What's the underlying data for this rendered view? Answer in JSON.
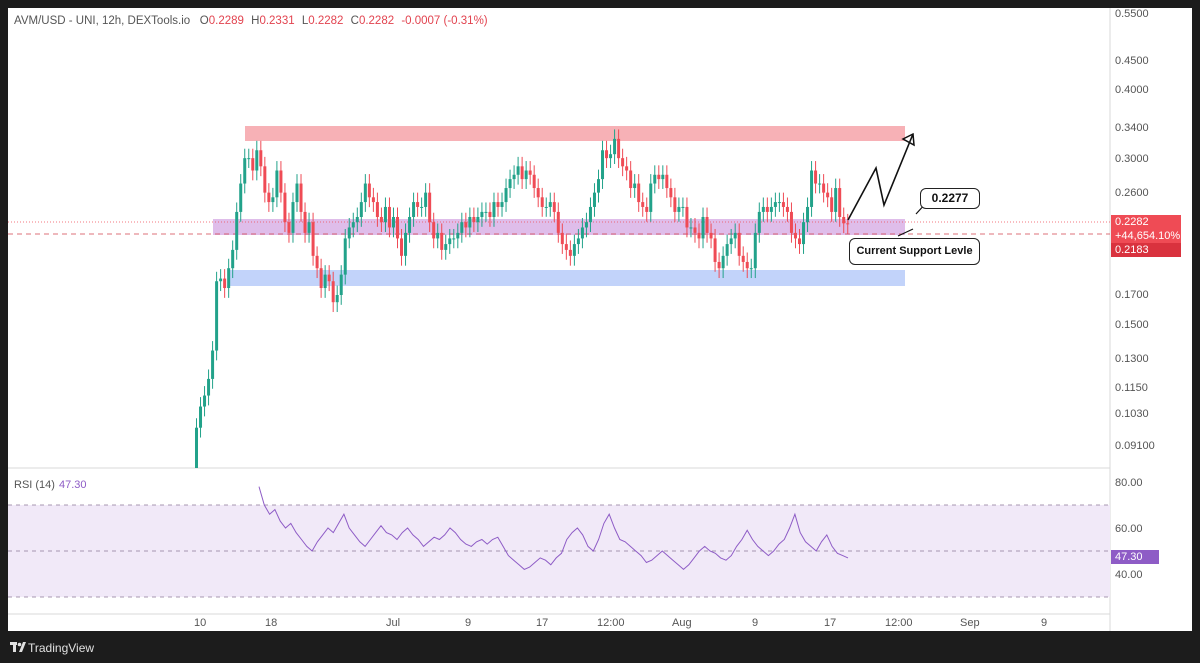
{
  "header": {
    "symbol": "AVM/USD - UNI, 12h, DEXTools.io",
    "open_label": "O",
    "open": "0.2289",
    "high_label": "H",
    "high": "0.2331",
    "low_label": "L",
    "low": "0.2282",
    "close_label": "C",
    "close": "0.2282",
    "change": "-0.0007 (-0.31%)"
  },
  "price_scale": [
    "0.5500",
    "0.4500",
    "0.4000",
    "0.3400",
    "0.3000",
    "0.2600",
    "0.1700",
    "0.1500",
    "0.1300",
    "0.1150",
    "0.1030",
    "0.09100"
  ],
  "price_tags": {
    "last": "0.2282",
    "percent": "+44,654.10%",
    "support": "0.2183"
  },
  "rsi": {
    "label": "RSI (14)",
    "value": "47.30",
    "scale": [
      "80.00",
      "60.00",
      "40.00"
    ]
  },
  "time_axis": [
    "10",
    "18",
    "Jul",
    "9",
    "17",
    "12:00",
    "Aug",
    "9",
    "17",
    "12:00",
    "Sep",
    "9"
  ],
  "annotations": {
    "target_label": "0.2277",
    "support_label": "Current Support Levle"
  },
  "footer": {
    "brand": "TradingView"
  },
  "colors": {
    "up": "#22a28a",
    "down": "#ef4b55",
    "rsi": "#8e5cc6",
    "resistance_zone": "#f7b1b6",
    "support_zone": "#d8b3e6",
    "lower_zone": "#c2d3fa"
  },
  "chart_data": {
    "type": "candlestick",
    "series": [
      {
        "name": "AVM/USD",
        "o": [
          0.08,
          0.098,
          0.107,
          0.112,
          0.12,
          0.135,
          0.18,
          0.182,
          0.175,
          0.19,
          0.205,
          0.24,
          0.27,
          0.3,
          0.3,
          0.285,
          0.31,
          0.29,
          0.26,
          0.25,
          0.255,
          0.285,
          0.26,
          0.23,
          0.22,
          0.25,
          0.27,
          0.24,
          0.22,
          0.23,
          0.2,
          0.19,
          0.175,
          0.185,
          0.18,
          0.165,
          0.17,
          0.185,
          0.215,
          0.225,
          0.23,
          0.235,
          0.25,
          0.27,
          0.255,
          0.25,
          0.235,
          0.23,
          0.245,
          0.225,
          0.235,
          0.215,
          0.2,
          0.22,
          0.235,
          0.25,
          0.245,
          0.245,
          0.26,
          0.23,
          0.215,
          0.22,
          0.205,
          0.21,
          0.215,
          0.215,
          0.22,
          0.23,
          0.225,
          0.235,
          0.23,
          0.235,
          0.24,
          0.24,
          0.235,
          0.25,
          0.245,
          0.25,
          0.265,
          0.275,
          0.28,
          0.29,
          0.275,
          0.285,
          0.28,
          0.265,
          0.255,
          0.245,
          0.245,
          0.25,
          0.24,
          0.22,
          0.21,
          0.205,
          0.2,
          0.21,
          0.215,
          0.225,
          0.23,
          0.245,
          0.26,
          0.275,
          0.31,
          0.3,
          0.305,
          0.325,
          0.3,
          0.29,
          0.285,
          0.265,
          0.27,
          0.25,
          0.245,
          0.24,
          0.27,
          0.28,
          0.275,
          0.28,
          0.265,
          0.255,
          0.24,
          0.245,
          0.245,
          0.225,
          0.225,
          0.22,
          0.215,
          0.235,
          0.22,
          0.215,
          0.195,
          0.19,
          0.2,
          0.21,
          0.215,
          0.22,
          0.2,
          0.195,
          0.19,
          0.19,
          0.22,
          0.24,
          0.245,
          0.24,
          0.245,
          0.25,
          0.25,
          0.245,
          0.24,
          0.22,
          0.215,
          0.21,
          0.23,
          0.245,
          0.285,
          0.27,
          0.27,
          0.26,
          0.255,
          0.24,
          0.265,
          0.235,
          0.2289
        ],
        "c": [
          0.098,
          0.107,
          0.112,
          0.12,
          0.135,
          0.18,
          0.182,
          0.175,
          0.19,
          0.205,
          0.24,
          0.27,
          0.3,
          0.3,
          0.285,
          0.31,
          0.29,
          0.26,
          0.25,
          0.255,
          0.285,
          0.26,
          0.23,
          0.22,
          0.25,
          0.27,
          0.24,
          0.22,
          0.23,
          0.2,
          0.19,
          0.175,
          0.185,
          0.18,
          0.165,
          0.17,
          0.185,
          0.215,
          0.225,
          0.23,
          0.235,
          0.25,
          0.27,
          0.255,
          0.25,
          0.235,
          0.23,
          0.245,
          0.225,
          0.235,
          0.215,
          0.2,
          0.22,
          0.235,
          0.25,
          0.245,
          0.245,
          0.26,
          0.23,
          0.215,
          0.22,
          0.205,
          0.21,
          0.215,
          0.215,
          0.22,
          0.23,
          0.225,
          0.235,
          0.23,
          0.235,
          0.24,
          0.24,
          0.235,
          0.25,
          0.245,
          0.25,
          0.265,
          0.275,
          0.28,
          0.29,
          0.275,
          0.285,
          0.28,
          0.265,
          0.255,
          0.245,
          0.245,
          0.25,
          0.24,
          0.22,
          0.21,
          0.205,
          0.2,
          0.21,
          0.215,
          0.225,
          0.23,
          0.245,
          0.26,
          0.275,
          0.31,
          0.3,
          0.305,
          0.325,
          0.3,
          0.29,
          0.285,
          0.265,
          0.27,
          0.25,
          0.245,
          0.24,
          0.27,
          0.28,
          0.275,
          0.28,
          0.265,
          0.255,
          0.24,
          0.245,
          0.245,
          0.225,
          0.225,
          0.22,
          0.215,
          0.235,
          0.22,
          0.215,
          0.195,
          0.19,
          0.2,
          0.21,
          0.215,
          0.22,
          0.2,
          0.195,
          0.19,
          0.19,
          0.22,
          0.24,
          0.245,
          0.24,
          0.245,
          0.25,
          0.25,
          0.245,
          0.24,
          0.22,
          0.215,
          0.21,
          0.23,
          0.245,
          0.285,
          0.27,
          0.27,
          0.26,
          0.255,
          0.24,
          0.265,
          0.235,
          0.2289,
          0.2282
        ]
      }
    ],
    "rsi_values": [
      78,
      70,
      66,
      68,
      63,
      60,
      62,
      58,
      55,
      52,
      50,
      54,
      57,
      60,
      58,
      62,
      66,
      60,
      57,
      54,
      52,
      55,
      58,
      61,
      58,
      57,
      55,
      58,
      60,
      57,
      55,
      52,
      54,
      56,
      55,
      57,
      60,
      58,
      55,
      53,
      52,
      54,
      55,
      53,
      55,
      56,
      52,
      48,
      46,
      44,
      42,
      43,
      45,
      47,
      46,
      44,
      47,
      49,
      55,
      58,
      60,
      57,
      52,
      50,
      55,
      62,
      66,
      60,
      55,
      54,
      52,
      50,
      48,
      45,
      46,
      48,
      50,
      48,
      46,
      44,
      42,
      44,
      47,
      50,
      52,
      50,
      49,
      47,
      46,
      48,
      52,
      55,
      59,
      55,
      52,
      50,
      48,
      50,
      53,
      55,
      60,
      66,
      58,
      54,
      52,
      50,
      54,
      57,
      52,
      49,
      48,
      47
    ]
  }
}
